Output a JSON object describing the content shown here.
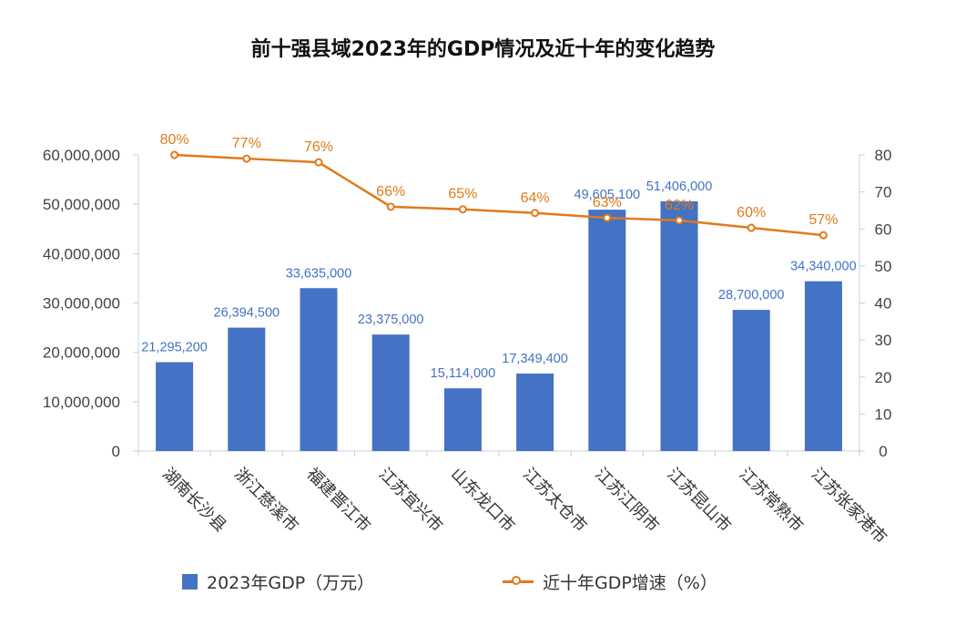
{
  "chart_data": {
    "type": "bar+line",
    "title": "前十强县域2023年的GDP情况及近十年的变化趋势",
    "categories": [
      "湖南长沙县",
      "浙江慈溪市",
      "福建晋江市",
      "江苏宜兴市",
      "山东龙口市",
      "江苏太仓市",
      "江苏江阴市",
      "江苏昆山市",
      "江苏常熟市",
      "江苏张家港市"
    ],
    "series": [
      {
        "name": "2023年GDP（万元）",
        "type": "bar",
        "axis": "left",
        "color": "#4472c4",
        "values": [
          21295200,
          26394500,
          33635000,
          23375000,
          15114000,
          17349400,
          49605100,
          51406000,
          28700000,
          34340000
        ],
        "labels": [
          "21,295,200",
          "26,394,500",
          "33,635,000",
          "23,375,000",
          "15,114,000",
          "17,349,400",
          "49,605,100",
          "51,406,000",
          "28,700,000",
          "34,340,000"
        ],
        "rendered_values": [
          18000000,
          25000000,
          33000000,
          23600000,
          12700000,
          15700000,
          48900000,
          50600000,
          28600000,
          34400000
        ]
      },
      {
        "name": "近十年GDP增速（%）",
        "type": "line",
        "axis": "right",
        "color": "#e07b1a",
        "values": [
          80,
          77,
          76,
          66,
          65,
          64,
          63,
          62,
          60,
          57
        ],
        "labels": [
          "80%",
          "77%",
          "76%",
          "66%",
          "65%",
          "64%",
          "63%",
          "62%",
          "60%",
          "57%"
        ],
        "rendered_values": [
          80,
          79,
          78,
          66,
          65.3,
          64.3,
          63,
          62.3,
          60.3,
          58.3
        ]
      }
    ],
    "left_axis": {
      "range": [
        0,
        60000000
      ],
      "ticks": [
        0,
        10000000,
        20000000,
        30000000,
        40000000,
        50000000,
        60000000
      ],
      "tick_labels": [
        "0",
        "10,000,000",
        "20,000,000",
        "30,000,000",
        "40,000,000",
        "50,000,000",
        "60,000,000"
      ]
    },
    "right_axis": {
      "range": [
        0,
        80
      ],
      "ticks": [
        0,
        10,
        20,
        30,
        40,
        50,
        60,
        70,
        80
      ],
      "tick_labels": [
        "0",
        "10",
        "20",
        "30",
        "40",
        "50",
        "60",
        "70",
        "80"
      ]
    },
    "legend_position": "bottom"
  },
  "legend": {
    "bar_label": "2023年GDP（万元）",
    "line_label": "近十年GDP增速（%）"
  },
  "colors": {
    "bar": "#4472c4",
    "line": "#e07b1a",
    "bar_label": "#4472c4",
    "axis_text": "#444444"
  }
}
